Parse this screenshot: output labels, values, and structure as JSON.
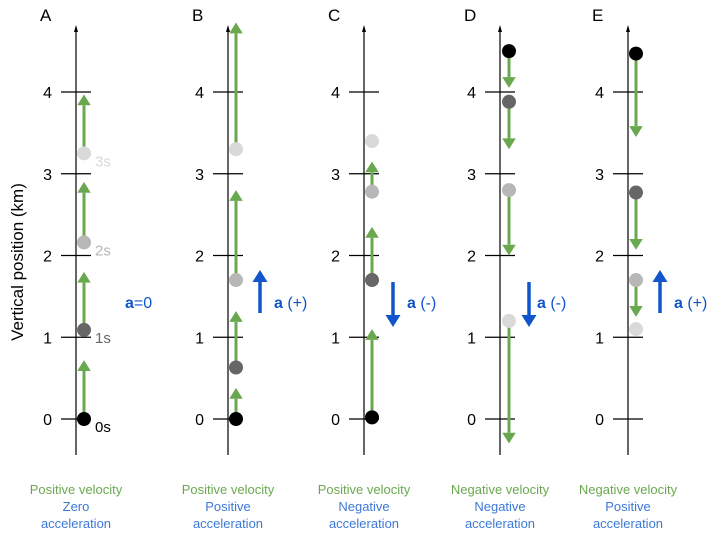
{
  "y_axis_label": "Vertical position (km)",
  "tick_labels": [
    "0",
    "1",
    "2",
    "3",
    "4"
  ],
  "colors": {
    "green": "#6aa84f",
    "blue": "#1155cc",
    "caption_blue": "#3c78d8",
    "dots": [
      "#000000",
      "#666666",
      "#b7b7b7",
      "#d9d9d9"
    ]
  },
  "panels": [
    {
      "letter": "A",
      "dots": [
        0,
        1.09,
        2.16,
        3.25
      ],
      "velocity_arrows": [
        [
          0,
          0.72
        ],
        [
          1.09,
          1.8
        ],
        [
          2.16,
          2.9
        ],
        [
          3.25,
          3.97
        ]
      ],
      "time_labels": [
        "0s",
        "1s",
        "2s",
        "3s"
      ],
      "accel": {
        "direction": "none",
        "label_bold": "a",
        "label_rest": "=0"
      },
      "caption": {
        "velocity": "Positive velocity",
        "accel_line1": "Zero",
        "accel_line2": "acceleration"
      }
    },
    {
      "letter": "B",
      "dots": [
        0,
        0.63,
        1.7,
        3.3
      ],
      "velocity_arrows": [
        [
          0,
          0.38
        ],
        [
          0.63,
          1.32
        ],
        [
          1.7,
          2.8
        ],
        [
          3.3,
          4.85
        ]
      ],
      "accel": {
        "direction": "up",
        "label_bold": "a",
        "label_rest": " (+)"
      },
      "caption": {
        "velocity": "Positive velocity",
        "accel_line1": "Positive",
        "accel_line2": "acceleration"
      }
    },
    {
      "letter": "C",
      "dots": [
        0.02,
        1.7,
        2.78,
        3.4
      ],
      "velocity_arrows": [
        [
          0.02,
          1.1
        ],
        [
          1.7,
          2.35
        ],
        [
          2.78,
          3.15
        ]
      ],
      "accel": {
        "direction": "down",
        "label_bold": "a",
        "label_rest": " (-)"
      },
      "caption": {
        "velocity": "Positive velocity",
        "accel_line1": "Negative",
        "accel_line2": "acceleration"
      }
    },
    {
      "letter": "D",
      "dots": [
        4.5,
        3.88,
        2.8,
        1.2
      ],
      "velocity_arrows": [
        [
          4.5,
          4.05
        ],
        [
          3.88,
          3.3
        ],
        [
          2.8,
          2.0
        ],
        [
          1.2,
          -0.3
        ]
      ],
      "accel": {
        "direction": "down",
        "label_bold": "a",
        "label_rest": " (-)"
      },
      "caption": {
        "velocity": "Negative velocity",
        "accel_line1": "Negative",
        "accel_line2": "acceleration"
      }
    },
    {
      "letter": "E",
      "dots": [
        4.47,
        2.77,
        1.7,
        1.1
      ],
      "velocity_arrows": [
        [
          4.47,
          3.45
        ],
        [
          2.77,
          2.07
        ],
        [
          1.7,
          1.25
        ]
      ],
      "accel": {
        "direction": "up",
        "label_bold": "a",
        "label_rest": " (+)"
      },
      "caption": {
        "velocity": "Negative velocity",
        "accel_line1": "Positive",
        "accel_line2": "acceleration"
      }
    }
  ]
}
